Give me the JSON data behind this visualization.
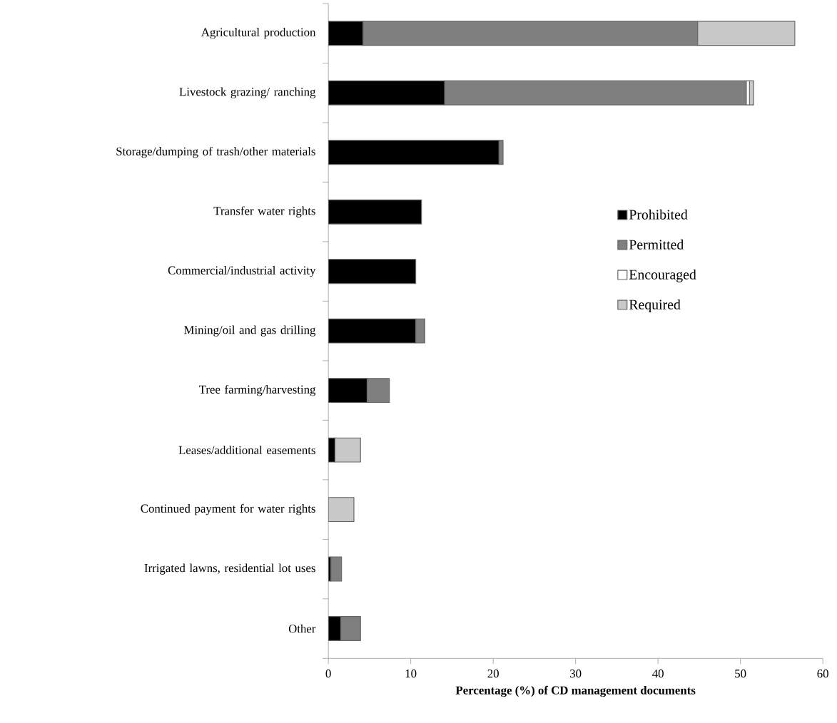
{
  "chart_data": {
    "type": "bar",
    "orientation": "horizontal",
    "stacked": true,
    "xlabel": "Percentage (%) of CD management documents",
    "categories": [
      "Agricultural production",
      "Livestock grazing/ ranching",
      "Storage/dumping of trash/other materials",
      "Transfer water rights",
      "Commercial/industrial activity",
      "Mining/oil and gas drilling",
      "Tree farming/harvesting",
      "Leases/additional easements",
      "Continued payment for water rights",
      "Irrigated lawns, residential lot uses",
      "Other"
    ],
    "series": [
      {
        "name": "Prohibited",
        "color": "#000000",
        "values": [
          4.2,
          14.1,
          20.7,
          11.3,
          10.6,
          10.6,
          4.7,
          0.8,
          null,
          0.3,
          1.5
        ]
      },
      {
        "name": "Permitted",
        "color": "#7f7f7f",
        "values": [
          40.6,
          36.6,
          0.5,
          null,
          null,
          1.1,
          2.7,
          null,
          null,
          1.3,
          2.4
        ]
      },
      {
        "name": "Encouraged",
        "color": "#ffffff",
        "values": [
          null,
          0.4,
          null,
          null,
          null,
          null,
          null,
          null,
          null,
          null,
          null
        ]
      },
      {
        "name": "Required",
        "color": "#c8c8c8",
        "values": [
          11.8,
          0.5,
          null,
          null,
          null,
          null,
          null,
          3.1,
          3.1,
          null,
          null
        ]
      }
    ],
    "xlim": [
      0,
      60
    ],
    "xticks": [
      0,
      10,
      20,
      30,
      40,
      50,
      60
    ],
    "grid": false,
    "legend": "right"
  }
}
